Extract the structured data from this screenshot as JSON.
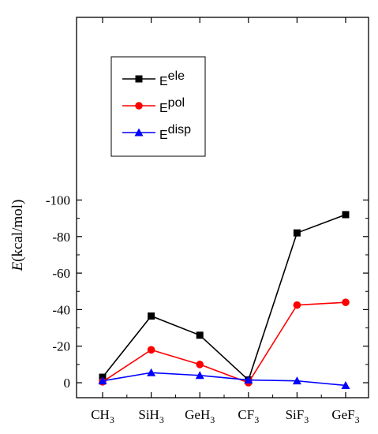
{
  "chart_data": {
    "type": "line",
    "categories": [
      {
        "base": "CH",
        "sub": "3"
      },
      {
        "base": "SiH",
        "sub": "3"
      },
      {
        "base": "GeH",
        "sub": "3"
      },
      {
        "base": "CF",
        "sub": "3"
      },
      {
        "base": "SiF",
        "sub": "3"
      },
      {
        "base": "GeF",
        "sub": "3"
      }
    ],
    "ylabel": {
      "symbol": "E",
      "unit": "(kcal/mol)"
    },
    "ylim": [
      0,
      -100
    ],
    "y_axis_reversed": true,
    "yticks": [
      0,
      -20,
      -40,
      -60,
      -80,
      -100
    ],
    "ytick_labels": [
      "0",
      "-20",
      "-40",
      "-60",
      "-80",
      "-100"
    ],
    "grid": false,
    "legend_position": "top-left",
    "series": [
      {
        "name": "Eele",
        "label_main": "E",
        "label_sup": "ele",
        "color": "#000000",
        "marker": "square",
        "values": [
          -3,
          -36.5,
          -26,
          -1.5,
          -82,
          -92
        ]
      },
      {
        "name": "Epol",
        "label_main": "E",
        "label_sup": "pol",
        "color": "#ff0000",
        "marker": "circle",
        "values": [
          -0.5,
          -18,
          -10,
          0,
          -42.5,
          -44
        ]
      },
      {
        "name": "Edisp",
        "label_main": "E",
        "label_sup": "disp",
        "color": "#0000ff",
        "marker": "triangle",
        "values": [
          -1,
          -5.5,
          -4,
          -1.5,
          -1,
          1.5
        ]
      }
    ]
  }
}
